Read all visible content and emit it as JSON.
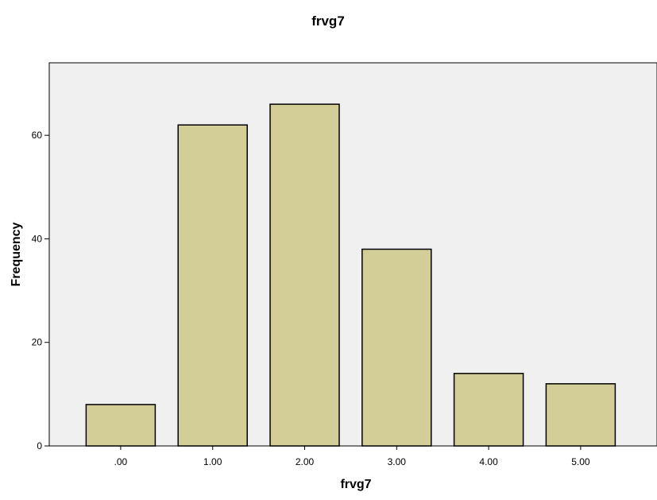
{
  "chart_data": {
    "type": "bar",
    "title": "frvg7",
    "xlabel": "frvg7",
    "ylabel": "Frequency",
    "categories": [
      ".00",
      "1.00",
      "2.00",
      "3.00",
      "4.00",
      "5.00"
    ],
    "values": [
      8,
      62,
      66,
      38,
      14,
      12
    ],
    "ylim": [
      0,
      74
    ],
    "yticks": [
      0,
      20,
      40,
      60
    ],
    "grid": false,
    "legend": "none",
    "colors": {
      "plot_background": "#f0f0f0",
      "bar_fill": "#d3ce97",
      "bar_stroke": "#000000",
      "axis": "#000000"
    }
  }
}
